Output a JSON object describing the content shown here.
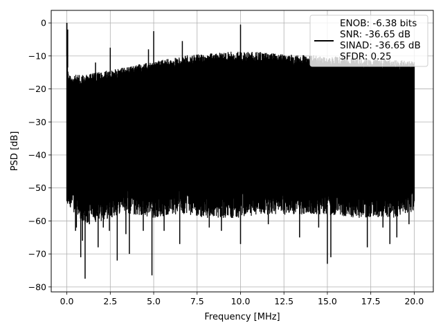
{
  "chart_data": {
    "type": "line",
    "title": "",
    "xlabel": "Frequency [MHz]",
    "ylabel": "PSD [dB]",
    "xlim": [
      -0.9,
      21.1
    ],
    "ylim": [
      -81.5,
      3.8
    ],
    "xticks": [
      0.0,
      2.5,
      5.0,
      7.5,
      10.0,
      12.5,
      15.0,
      17.5,
      20.0
    ],
    "xtick_labels": [
      "0.0",
      "2.5",
      "5.0",
      "7.5",
      "10.0",
      "12.5",
      "15.0",
      "17.5",
      "20.0"
    ],
    "yticks": [
      0,
      -10,
      -20,
      -30,
      -40,
      -50,
      -60,
      -70,
      -80
    ],
    "ytick_labels": [
      "0",
      "−10",
      "−20",
      "−30",
      "−40",
      "−50",
      "−60",
      "−70",
      "−80"
    ],
    "grid": true,
    "legend_position": "top-right",
    "legend_lines": [
      "ENOB: -6.38 bits",
      "SNR: -36.65 dB",
      "SINAD: -36.65 dB",
      "SFDR: 0.25"
    ],
    "series_color": "#000000",
    "x_range": [
      0.0,
      20.0
    ],
    "envelope": {
      "x": [
        0.0,
        0.1,
        0.5,
        1.0,
        2.0,
        3.0,
        4.0,
        5.0,
        6.0,
        7.0,
        8.0,
        9.0,
        10.0,
        11.0,
        12.0,
        13.0,
        14.0,
        15.0,
        16.0,
        17.0,
        18.0,
        19.0,
        20.0
      ],
      "upper": [
        -10,
        -17,
        -17,
        -17,
        -16,
        -15,
        -14,
        -13,
        -12,
        -11,
        -10.5,
        -10,
        -10,
        -10,
        -10.5,
        -11,
        -11,
        -11.5,
        -11.5,
        -12,
        -12,
        -12.5,
        -13
      ],
      "lower": [
        -54,
        -52,
        -55,
        -58,
        -57,
        -55,
        -55,
        -56,
        -55,
        -55,
        -56,
        -56,
        -56,
        -55,
        -55,
        -55,
        -55,
        -55,
        -56,
        -56,
        -56,
        -56,
        -54
      ]
    },
    "peaks": [
      {
        "x": 0.0,
        "y": 0.0
      },
      {
        "x": 0.05,
        "y": -2.0
      },
      {
        "x": 1.65,
        "y": -12.0
      },
      {
        "x": 2.5,
        "y": -7.5
      },
      {
        "x": 4.7,
        "y": -8.0
      },
      {
        "x": 5.0,
        "y": -2.5
      },
      {
        "x": 6.65,
        "y": -5.5
      },
      {
        "x": 10.0,
        "y": -0.5
      }
    ],
    "dips": [
      {
        "x": 0.5,
        "y": -63.0
      },
      {
        "x": 0.55,
        "y": -62.0
      },
      {
        "x": 0.8,
        "y": -71.0
      },
      {
        "x": 0.9,
        "y": -66.0
      },
      {
        "x": 1.05,
        "y": -77.5
      },
      {
        "x": 1.3,
        "y": -61.0
      },
      {
        "x": 1.8,
        "y": -68.0
      },
      {
        "x": 2.1,
        "y": -62.0
      },
      {
        "x": 2.45,
        "y": -63.0
      },
      {
        "x": 2.9,
        "y": -72.0
      },
      {
        "x": 3.4,
        "y": -64.0
      },
      {
        "x": 3.6,
        "y": -70.0
      },
      {
        "x": 4.4,
        "y": -63.0
      },
      {
        "x": 4.9,
        "y": -76.5
      },
      {
        "x": 5.6,
        "y": -63.0
      },
      {
        "x": 6.5,
        "y": -67.0
      },
      {
        "x": 8.2,
        "y": -62.0
      },
      {
        "x": 8.9,
        "y": -63.0
      },
      {
        "x": 10.0,
        "y": -67.0
      },
      {
        "x": 11.6,
        "y": -61.0
      },
      {
        "x": 13.4,
        "y": -65.0
      },
      {
        "x": 14.5,
        "y": -62.0
      },
      {
        "x": 15.0,
        "y": -73.0
      },
      {
        "x": 15.2,
        "y": -71.0
      },
      {
        "x": 17.3,
        "y": -68.0
      },
      {
        "x": 18.2,
        "y": -62.0
      },
      {
        "x": 18.6,
        "y": -67.0
      },
      {
        "x": 19.0,
        "y": -65.0
      },
      {
        "x": 19.7,
        "y": -61.0
      }
    ]
  }
}
